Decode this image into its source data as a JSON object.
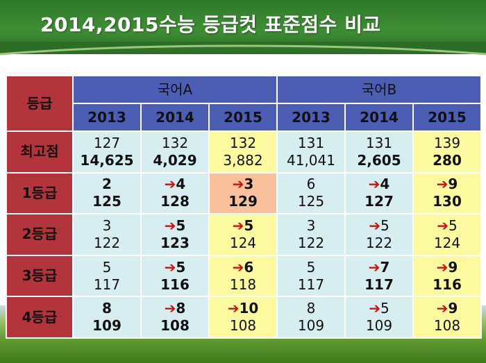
{
  "title": "2014,2015수능 등급컷 표준점수 비교",
  "table": {
    "grade_header": "등급",
    "groups": [
      "국어A",
      "국어B"
    ],
    "years": [
      "2013",
      "2014",
      "2015",
      "2013",
      "2014",
      "2015"
    ],
    "rows": [
      {
        "label": "최고점",
        "cells": [
          {
            "top": "127",
            "bottom": "14,625",
            "arrow": false,
            "bold_top": false,
            "bold_bottom": true,
            "bg": "blue"
          },
          {
            "top": "132",
            "bottom": "4,029",
            "arrow": false,
            "bold_top": false,
            "bold_bottom": true,
            "bg": "blue"
          },
          {
            "top": "132",
            "bottom": "3,882",
            "arrow": false,
            "bold_top": false,
            "bold_bottom": false,
            "bg": "yellow"
          },
          {
            "top": "131",
            "bottom": "41,041",
            "arrow": false,
            "bold_top": false,
            "bold_bottom": false,
            "bg": "blue"
          },
          {
            "top": "131",
            "bottom": "2,605",
            "arrow": false,
            "bold_top": false,
            "bold_bottom": true,
            "bg": "blue"
          },
          {
            "top": "139",
            "bottom": "280",
            "arrow": false,
            "bold_top": false,
            "bold_bottom": true,
            "bg": "yellow"
          }
        ]
      },
      {
        "label": "1등급",
        "cells": [
          {
            "top": "2",
            "bottom": "125",
            "arrow": false,
            "bold_top": true,
            "bold_bottom": true,
            "bg": "blue"
          },
          {
            "top": "4",
            "bottom": "128",
            "arrow": true,
            "bold_top": true,
            "bold_bottom": true,
            "bg": "blue"
          },
          {
            "top": "3",
            "bottom": "129",
            "arrow": true,
            "bold_top": true,
            "bold_bottom": true,
            "bg": "orange"
          },
          {
            "top": "6",
            "bottom": "125",
            "arrow": false,
            "bold_top": false,
            "bold_bottom": false,
            "bg": "blue"
          },
          {
            "top": "4",
            "bottom": "127",
            "arrow": true,
            "bold_top": true,
            "bold_bottom": true,
            "bg": "blue"
          },
          {
            "top": "9",
            "bottom": "130",
            "arrow": true,
            "bold_top": true,
            "bold_bottom": true,
            "bg": "yellow"
          }
        ]
      },
      {
        "label": "2등급",
        "cells": [
          {
            "top": "3",
            "bottom": "122",
            "arrow": false,
            "bold_top": false,
            "bold_bottom": false,
            "bg": "blue"
          },
          {
            "top": "5",
            "bottom": "123",
            "arrow": true,
            "bold_top": true,
            "bold_bottom": true,
            "bg": "blue"
          },
          {
            "top": "5",
            "bottom": "124",
            "arrow": true,
            "bold_top": true,
            "bold_bottom": false,
            "bg": "yellow"
          },
          {
            "top": "3",
            "bottom": "122",
            "arrow": false,
            "bold_top": false,
            "bold_bottom": false,
            "bg": "blue"
          },
          {
            "top": "5",
            "bottom": "122",
            "arrow": true,
            "bold_top": false,
            "bold_bottom": false,
            "bg": "blue"
          },
          {
            "top": "5",
            "bottom": "124",
            "arrow": true,
            "bold_top": false,
            "bold_bottom": false,
            "bg": "yellow"
          }
        ]
      },
      {
        "label": "3등급",
        "cells": [
          {
            "top": "5",
            "bottom": "117",
            "arrow": false,
            "bold_top": false,
            "bold_bottom": false,
            "bg": "blue"
          },
          {
            "top": "5",
            "bottom": "116",
            "arrow": true,
            "bold_top": true,
            "bold_bottom": true,
            "bg": "blue"
          },
          {
            "top": "6",
            "bottom": "118",
            "arrow": true,
            "bold_top": true,
            "bold_bottom": false,
            "bg": "yellow"
          },
          {
            "top": "5",
            "bottom": "117",
            "arrow": false,
            "bold_top": false,
            "bold_bottom": false,
            "bg": "blue"
          },
          {
            "top": "7",
            "bottom": "117",
            "arrow": true,
            "bold_top": true,
            "bold_bottom": true,
            "bg": "blue"
          },
          {
            "top": "9",
            "bottom": "116",
            "arrow": true,
            "bold_top": true,
            "bold_bottom": true,
            "bg": "yellow"
          }
        ]
      },
      {
        "label": "4등급",
        "cells": [
          {
            "top": "8",
            "bottom": "109",
            "arrow": false,
            "bold_top": true,
            "bold_bottom": true,
            "bg": "blue"
          },
          {
            "top": "8",
            "bottom": "108",
            "arrow": true,
            "bold_top": true,
            "bold_bottom": true,
            "bg": "blue"
          },
          {
            "top": "10",
            "bottom": "108",
            "arrow": true,
            "bold_top": true,
            "bold_bottom": false,
            "bg": "yellow"
          },
          {
            "top": "8",
            "bottom": "109",
            "arrow": false,
            "bold_top": false,
            "bold_bottom": false,
            "bg": "blue"
          },
          {
            "top": "5",
            "bottom": "109",
            "arrow": true,
            "bold_top": false,
            "bold_bottom": false,
            "bg": "blue"
          },
          {
            "top": "9",
            "bottom": "108",
            "arrow": true,
            "bold_top": true,
            "bold_bottom": false,
            "bg": "yellow"
          }
        ]
      }
    ]
  },
  "colors": {
    "banner_green": "#3e8e34",
    "header_red": "#b3343a",
    "header_blue": "#4c5eb3",
    "cell_blue": "#d7eef1",
    "cell_yellow": "#fbfa9e",
    "cell_orange": "#f9c19b",
    "arrow_red": "#cc1111"
  },
  "icons": {
    "arrow": "right-arrow-icon"
  }
}
